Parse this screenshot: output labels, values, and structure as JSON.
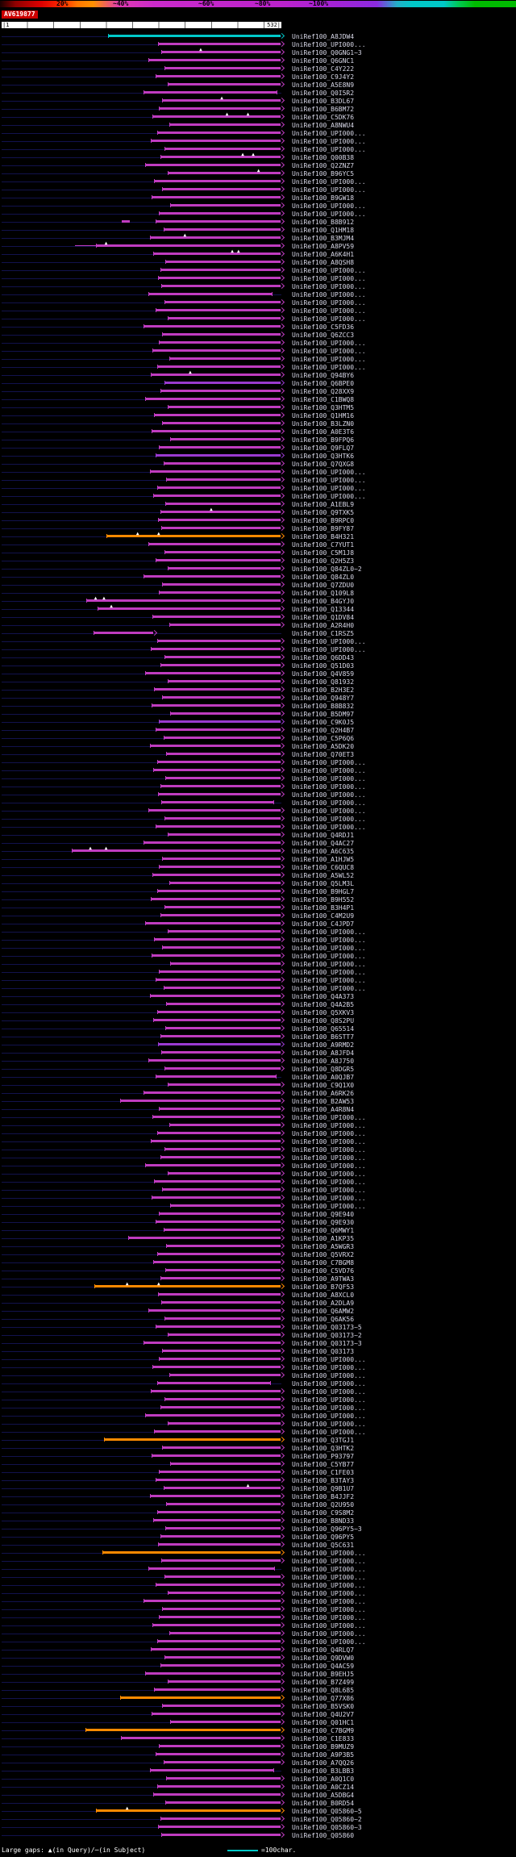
{
  "header": {
    "scale_labels": [
      "20%",
      "~40%",
      "~60%",
      "~80%",
      "~100%"
    ],
    "query_name": "AV619877",
    "ruler": {
      "start": "|1",
      "end": "532|"
    }
  },
  "footer": {
    "gaps_legend": "Large gaps: ▲(in Query)/─(in Subject)",
    "scale_legend": "=100char."
  },
  "colors": {
    "bars": {
      "m": "#c03cc0",
      "p": "#9a3ad0",
      "o": "#ff8a00",
      "cy": "#00c8c8"
    },
    "baseline": "#12124d",
    "label": "#d8d8e8",
    "gap_marker": "#ffffff"
  },
  "chart_data": {
    "type": "bar",
    "title": "AV619877",
    "xlabel": "query position",
    "x_range": [
      1,
      532
    ],
    "legend_position": "top",
    "rows": [
      {
        "l": "UniRef100_A8JDW4",
        "s": 205,
        "c": "cy"
      },
      {
        "l": "UniRef100_UPI000...",
        "s": 300
      },
      {
        "l": "UniRef100_Q0GNG1~3",
        "s": 306,
        "t": [
          380
        ]
      },
      {
        "l": "UniRef100_Q6GNC1",
        "s": 282
      },
      {
        "l": "UniRef100_C4Y222",
        "s": 312
      },
      {
        "l": "UniRef100_C9J4Y2",
        "s": 296
      },
      {
        "l": "UniRef100_A5E8N9",
        "s": 318
      },
      {
        "l": "UniRef100_Q0I5R2",
        "s": 272,
        "e": 524,
        "a": 0
      },
      {
        "l": "UniRef100_B3DL67",
        "s": 308,
        "t": [
          420
        ]
      },
      {
        "l": "UniRef100_B6BM72",
        "s": 302
      },
      {
        "l": "UniRef100_C5DK76",
        "s": 290,
        "t": [
          430,
          470
        ]
      },
      {
        "l": "UniRef100_A8NWU4",
        "s": 321
      },
      {
        "l": "UniRef100_UPI000...",
        "s": 298
      },
      {
        "l": "UniRef100_UPI000...",
        "s": 286
      },
      {
        "l": "UniRef100_UPI000...",
        "s": 313
      },
      {
        "l": "UniRef100_Q00B38",
        "s": 305,
        "t": [
          460,
          480
        ]
      },
      {
        "l": "UniRef100_Q2ZNZ7",
        "s": 276
      },
      {
        "l": "UniRef100_B96YC5",
        "s": 319,
        "t": [
          490
        ]
      },
      {
        "l": "UniRef100_UPI000...",
        "s": 293
      },
      {
        "l": "UniRef100_UPI000...",
        "s": 307
      },
      {
        "l": "UniRef100_B9GW18",
        "s": 288
      },
      {
        "l": "UniRef100_UPI000...",
        "s": 323
      },
      {
        "l": "UniRef100_UPI000...",
        "s": 301
      },
      {
        "l": "UniRef100_B8B912",
        "s": 296,
        "pre": [
          [
            230,
            245
          ]
        ]
      },
      {
        "l": "UniRef100_Q1HM18",
        "s": 311
      },
      {
        "l": "UniRef100_B3MJM4",
        "s": 284,
        "t": [
          350
        ]
      },
      {
        "l": "UniRef100_A8PV59",
        "s": 182,
        "g": [
          [
            140,
            182
          ]
        ],
        "t": [
          200
        ]
      },
      {
        "l": "UniRef100_A6K4H1",
        "s": 291,
        "t": [
          440,
          452
        ]
      },
      {
        "l": "UniRef100_A8QSH8",
        "s": 314
      },
      {
        "l": "UniRef100_UPI000...",
        "s": 304
      },
      {
        "l": "UniRef100_UPI000...",
        "s": 300
      },
      {
        "l": "UniRef100_UPI000...",
        "s": 306
      },
      {
        "l": "UniRef100_UPI000...",
        "s": 282,
        "e": 515,
        "a": 0
      },
      {
        "l": "UniRef100_UPI000...",
        "s": 312
      },
      {
        "l": "UniRef100_UPI000...",
        "s": 296
      },
      {
        "l": "UniRef100_UPI000...",
        "s": 318
      },
      {
        "l": "UniRef100_C5FD36",
        "s": 272
      },
      {
        "l": "UniRef100_Q6ZCC3",
        "s": 308
      },
      {
        "l": "UniRef100_UPI000...",
        "s": 302
      },
      {
        "l": "UniRef100_UPI000...",
        "s": 290
      },
      {
        "l": "UniRef100_UPI000...",
        "s": 321
      },
      {
        "l": "UniRef100_UPI000...",
        "s": 298
      },
      {
        "l": "UniRef100_Q94BY6",
        "s": 286,
        "t": [
          360
        ]
      },
      {
        "l": "UniRef100_Q6BPE0",
        "s": 313,
        "c": "p"
      },
      {
        "l": "UniRef100_Q28XX9",
        "s": 305
      },
      {
        "l": "UniRef100_C1BWQ8",
        "s": 276
      },
      {
        "l": "UniRef100_Q3HTM5",
        "s": 319
      },
      {
        "l": "UniRef100_Q1HM16",
        "s": 293
      },
      {
        "l": "UniRef100_B3LZN0",
        "s": 307
      },
      {
        "l": "UniRef100_A0E3T6",
        "s": 288
      },
      {
        "l": "UniRef100_B9FPQ6",
        "s": 323
      },
      {
        "l": "UniRef100_Q9FLQ7",
        "s": 301
      },
      {
        "l": "UniRef100_Q3HTK6",
        "s": 296,
        "c": "p"
      },
      {
        "l": "UniRef100_Q7QXG8",
        "s": 311
      },
      {
        "l": "UniRef100_UPI000...",
        "s": 284
      },
      {
        "l": "UniRef100_UPI000...",
        "s": 316
      },
      {
        "l": "UniRef100_UPI000...",
        "s": 299
      },
      {
        "l": "UniRef100_UPI000...",
        "s": 291
      },
      {
        "l": "UniRef100_A1EBL9",
        "s": 314
      },
      {
        "l": "UniRef100_Q9TXK5",
        "s": 304,
        "t": [
          400
        ]
      },
      {
        "l": "UniRef100_B9RPC0",
        "s": 300
      },
      {
        "l": "UniRef100_B9FY87",
        "s": 306
      },
      {
        "l": "UniRef100_B4H321",
        "s": 202,
        "c": "o",
        "t": [
          260,
          300
        ]
      },
      {
        "l": "UniRef100_C7YUT1",
        "s": 282
      },
      {
        "l": "UniRef100_C5M1J8",
        "s": 312
      },
      {
        "l": "UniRef100_Q2H5Z3",
        "s": 296
      },
      {
        "l": "UniRef100_Q84ZL0~2",
        "s": 318
      },
      {
        "l": "UniRef100_Q84ZL0",
        "s": 272
      },
      {
        "l": "UniRef100_Q7ZDU0",
        "s": 308
      },
      {
        "l": "UniRef100_Q109L8",
        "s": 302
      },
      {
        "l": "UniRef100_B4GYJ0",
        "s": 163,
        "t": [
          180,
          196
        ]
      },
      {
        "l": "UniRef100_Q13344",
        "s": 185,
        "t": [
          210
        ]
      },
      {
        "l": "UniRef100_Q1DV84",
        "s": 290
      },
      {
        "l": "UniRef100_A2R4H0",
        "s": 321
      },
      {
        "l": "UniRef100_C1RSZ5",
        "s": 178,
        "e": 289
      },
      {
        "l": "UniRef100_UPI000...",
        "s": 298
      },
      {
        "l": "UniRef100_UPI000...",
        "s": 286
      },
      {
        "l": "UniRef100_Q6DD43",
        "s": 313
      },
      {
        "l": "UniRef100_Q51D03",
        "s": 305
      },
      {
        "l": "UniRef100_Q4V859",
        "s": 276
      },
      {
        "l": "UniRef100_Q81932",
        "s": 319
      },
      {
        "l": "UniRef100_B2H3E2",
        "s": 293
      },
      {
        "l": "UniRef100_Q948Y7",
        "s": 307
      },
      {
        "l": "UniRef100_B8B832",
        "s": 288
      },
      {
        "l": "UniRef100_B5DM97",
        "s": 323
      },
      {
        "l": "UniRef100_C9K0J5",
        "s": 301,
        "c": "p"
      },
      {
        "l": "UniRef100_Q2H4B7",
        "s": 296
      },
      {
        "l": "UniRef100_C5P6Q6",
        "s": 311
      },
      {
        "l": "UniRef100_A5DK20",
        "s": 284
      },
      {
        "l": "UniRef100_Q70ET3",
        "s": 316
      },
      {
        "l": "UniRef100_UPI000...",
        "s": 299
      },
      {
        "l": "UniRef100_UPI000...",
        "s": 291
      },
      {
        "l": "UniRef100_UPI000...",
        "s": 314
      },
      {
        "l": "UniRef100_UPI000...",
        "s": 304
      },
      {
        "l": "UniRef100_UPI000...",
        "s": 300
      },
      {
        "l": "UniRef100_UPI000...",
        "s": 306,
        "e": 518,
        "a": 0
      },
      {
        "l": "UniRef100_UPI000...",
        "s": 282
      },
      {
        "l": "UniRef100_UPI000...",
        "s": 312
      },
      {
        "l": "UniRef100_UPI000...",
        "s": 296
      },
      {
        "l": "UniRef100_Q4RDJ1",
        "s": 318
      },
      {
        "l": "UniRef100_Q4AC27",
        "s": 272
      },
      {
        "l": "UniRef100_A6C635",
        "s": 136,
        "t": [
          170,
          200
        ]
      },
      {
        "l": "UniRef100_A1HJW5",
        "s": 308
      },
      {
        "l": "UniRef100_C6QUC8",
        "s": 302
      },
      {
        "l": "UniRef100_A5WL52",
        "s": 290
      },
      {
        "l": "UniRef100_Q5LM3L",
        "s": 321
      },
      {
        "l": "UniRef100_B9HGL7",
        "s": 298
      },
      {
        "l": "UniRef100_B9H552",
        "s": 286
      },
      {
        "l": "UniRef100_B3H4P1",
        "s": 313
      },
      {
        "l": "UniRef100_C4M2U9",
        "s": 305
      },
      {
        "l": "UniRef100_C4JPD7",
        "s": 276
      },
      {
        "l": "UniRef100_UPI000...",
        "s": 319
      },
      {
        "l": "UniRef100_UPI000...",
        "s": 293
      },
      {
        "l": "UniRef100_UPI000...",
        "s": 307
      },
      {
        "l": "UniRef100_UPI000...",
        "s": 288
      },
      {
        "l": "UniRef100_UPI000...",
        "s": 323
      },
      {
        "l": "UniRef100_UPI000...",
        "s": 301
      },
      {
        "l": "UniRef100_UPI000...",
        "s": 296
      },
      {
        "l": "UniRef100_UPI000...",
        "s": 311
      },
      {
        "l": "UniRef100_Q4A373",
        "s": 284
      },
      {
        "l": "UniRef100_Q4A2B5",
        "s": 316
      },
      {
        "l": "UniRef100_Q5XKV3",
        "s": 299
      },
      {
        "l": "UniRef100_Q8S2PU",
        "s": 291
      },
      {
        "l": "UniRef100_Q65514",
        "s": 314
      },
      {
        "l": "UniRef100_B6STT7",
        "s": 304
      },
      {
        "l": "UniRef100_A9RMD2",
        "s": 300,
        "c": "p"
      },
      {
        "l": "UniRef100_A8JFD4",
        "s": 306
      },
      {
        "l": "UniRef100_A8J750",
        "s": 282
      },
      {
        "l": "UniRef100_Q8DGR5",
        "s": 312
      },
      {
        "l": "UniRef100_A0QJB7",
        "s": 296,
        "e": 522,
        "a": 0
      },
      {
        "l": "UniRef100_C9Q1X0",
        "s": 318
      },
      {
        "l": "UniRef100_A6RK26",
        "s": 272
      },
      {
        "l": "UniRef100_B2AW53",
        "s": 228
      },
      {
        "l": "UniRef100_A4R8N4",
        "s": 302
      },
      {
        "l": "UniRef100_UPI000...",
        "s": 290
      },
      {
        "l": "UniRef100_UPI000...",
        "s": 321
      },
      {
        "l": "UniRef100_UPI000...",
        "s": 298
      },
      {
        "l": "UniRef100_UPI000...",
        "s": 286
      },
      {
        "l": "UniRef100_UPI000...",
        "s": 313
      },
      {
        "l": "UniRef100_UPI000...",
        "s": 305
      },
      {
        "l": "UniRef100_UPI000...",
        "s": 276
      },
      {
        "l": "UniRef100_UPI000...",
        "s": 319
      },
      {
        "l": "UniRef100_UPI000...",
        "s": 293
      },
      {
        "l": "UniRef100_UPI000...",
        "s": 307
      },
      {
        "l": "UniRef100_UPI000...",
        "s": 288
      },
      {
        "l": "UniRef100_UPI000...",
        "s": 323
      },
      {
        "l": "UniRef100_Q9E940",
        "s": 301
      },
      {
        "l": "UniRef100_Q9E930",
        "s": 296
      },
      {
        "l": "UniRef100_Q6MWY1",
        "s": 311
      },
      {
        "l": "UniRef100_A1KP35",
        "s": 243
      },
      {
        "l": "UniRef100_A5WGR3",
        "s": 316
      },
      {
        "l": "UniRef100_Q5VRX2",
        "s": 299
      },
      {
        "l": "UniRef100_C7BGM8",
        "s": 291
      },
      {
        "l": "UniRef100_C5VD76",
        "s": 314
      },
      {
        "l": "UniRef100_A9TWA3",
        "s": 304
      },
      {
        "l": "UniRef100_B7QF53",
        "s": 179,
        "c": "o",
        "t": [
          240,
          300
        ]
      },
      {
        "l": "UniRef100_A8XCL0",
        "s": 300
      },
      {
        "l": "UniRef100_A2DLA9",
        "s": 306
      },
      {
        "l": "UniRef100_Q6AMW2",
        "s": 282
      },
      {
        "l": "UniRef100_Q6AK56",
        "s": 312
      },
      {
        "l": "UniRef100_Q03173~5",
        "s": 296
      },
      {
        "l": "UniRef100_Q03173~2",
        "s": 318
      },
      {
        "l": "UniRef100_Q03173~3",
        "s": 272
      },
      {
        "l": "UniRef100_Q03173",
        "s": 308
      },
      {
        "l": "UniRef100_UPI000...",
        "s": 302
      },
      {
        "l": "UniRef100_UPI000...",
        "s": 290
      },
      {
        "l": "UniRef100_UPI000...",
        "s": 321
      },
      {
        "l": "UniRef100_UPI000...",
        "s": 298,
        "e": 512,
        "a": 0
      },
      {
        "l": "UniRef100_UPI000...",
        "s": 286
      },
      {
        "l": "UniRef100_UPI000...",
        "s": 313
      },
      {
        "l": "UniRef100_UPI000...",
        "s": 305
      },
      {
        "l": "UniRef100_UPI000...",
        "s": 276
      },
      {
        "l": "UniRef100_UPI000...",
        "s": 319
      },
      {
        "l": "UniRef100_UPI000...",
        "s": 293
      },
      {
        "l": "UniRef100_Q3TGJ1",
        "s": 197,
        "c": "o"
      },
      {
        "l": "UniRef100_Q3HTK2",
        "s": 307
      },
      {
        "l": "UniRef100_P93797",
        "s": 288
      },
      {
        "l": "UniRef100_C5YB77",
        "s": 323
      },
      {
        "l": "UniRef100_C1FE03",
        "s": 301
      },
      {
        "l": "UniRef100_B3TAY3",
        "s": 296
      },
      {
        "l": "UniRef100_Q9B1U7",
        "s": 311,
        "t": [
          470
        ]
      },
      {
        "l": "UniRef100_B4JJF2",
        "s": 284
      },
      {
        "l": "UniRef100_Q2U950",
        "s": 316
      },
      {
        "l": "UniRef100_C9S8M2",
        "s": 299
      },
      {
        "l": "UniRef100_B8ND33",
        "s": 291
      },
      {
        "l": "UniRef100_Q96PY5~3",
        "s": 314
      },
      {
        "l": "UniRef100_Q96PY5",
        "s": 304
      },
      {
        "l": "UniRef100_Q5C631",
        "s": 300
      },
      {
        "l": "UniRef100_UPI000...",
        "s": 194,
        "c": "o"
      },
      {
        "l": "UniRef100_UPI000...",
        "s": 306
      },
      {
        "l": "UniRef100_UPI000...",
        "s": 282,
        "e": 520,
        "a": 0
      },
      {
        "l": "UniRef100_UPI000...",
        "s": 312
      },
      {
        "l": "UniRef100_UPI000...",
        "s": 296
      },
      {
        "l": "UniRef100_UPI000...",
        "s": 318
      },
      {
        "l": "UniRef100_UPI000...",
        "s": 272
      },
      {
        "l": "UniRef100_UPI000...",
        "s": 308
      },
      {
        "l": "UniRef100_UPI000...",
        "s": 302
      },
      {
        "l": "UniRef100_UPI000...",
        "s": 290
      },
      {
        "l": "UniRef100_UPI000...",
        "s": 321
      },
      {
        "l": "UniRef100_UPI000...",
        "s": 298
      },
      {
        "l": "UniRef100_Q4RLQ7",
        "s": 286
      },
      {
        "l": "UniRef100_Q9DVW0",
        "s": 313
      },
      {
        "l": "UniRef100_Q4AC59",
        "s": 305
      },
      {
        "l": "UniRef100_B9EHJ5",
        "s": 276
      },
      {
        "l": "UniRef100_B7Z499",
        "s": 319
      },
      {
        "l": "UniRef100_Q8L685",
        "s": 293
      },
      {
        "l": "UniRef100_Q77X86",
        "s": 228,
        "c": "o"
      },
      {
        "l": "UniRef100_B5VSK0",
        "s": 307
      },
      {
        "l": "UniRef100_Q4U2V7",
        "s": 288
      },
      {
        "l": "UniRef100_Q01HC1",
        "s": 323
      },
      {
        "l": "UniRef100_C7BGM9",
        "s": 162,
        "c": "o"
      },
      {
        "l": "UniRef100_C1E833",
        "s": 230
      },
      {
        "l": "UniRef100_B9MUZ9",
        "s": 301
      },
      {
        "l": "UniRef100_A9P3B5",
        "s": 296
      },
      {
        "l": "UniRef100_A7QQ26",
        "s": 311
      },
      {
        "l": "UniRef100_B3LBB3",
        "s": 284,
        "e": 518,
        "a": 0
      },
      {
        "l": "UniRef100_A0Q1C0",
        "s": 316
      },
      {
        "l": "UniRef100_A0CZ14",
        "s": 299
      },
      {
        "l": "UniRef100_A5DBG4",
        "s": 291
      },
      {
        "l": "UniRef100_B0RD54",
        "s": 314
      },
      {
        "l": "UniRef100_Q05860~5",
        "s": 182,
        "c": "o",
        "t": [
          240
        ]
      },
      {
        "l": "UniRef100_Q05860~2",
        "s": 304
      },
      {
        "l": "UniRef100_Q05860~3",
        "s": 300
      },
      {
        "l": "UniRef100_Q05860",
        "s": 306
      }
    ]
  }
}
